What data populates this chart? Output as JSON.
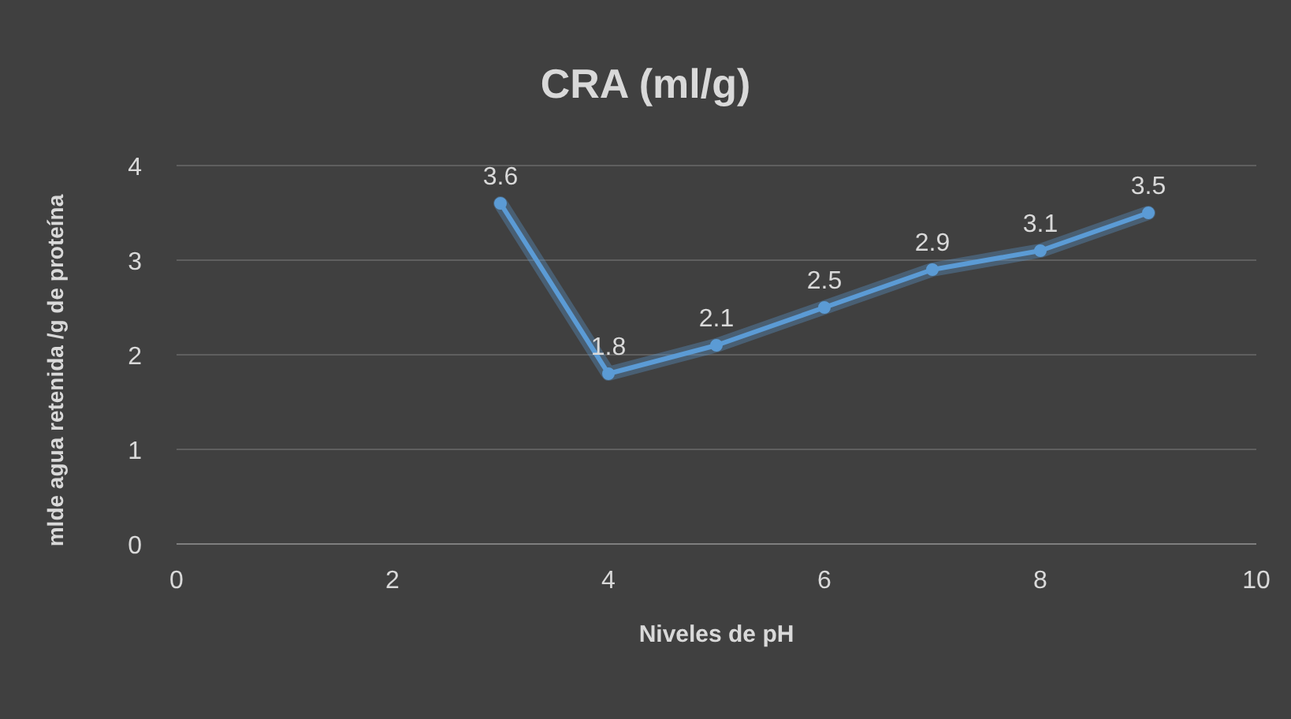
{
  "chart_data": {
    "type": "line",
    "title": "CRA (ml/g)",
    "xlabel": "Niveles de pH",
    "ylabel": "mlde agua retenida /g de proteína",
    "x": [
      3,
      4,
      5,
      6,
      7,
      8,
      9
    ],
    "series": [
      {
        "color": "#5b9bd5",
        "values": [
          3.6,
          1.8,
          2.1,
          2.5,
          2.9,
          3.1,
          3.5
        ]
      }
    ],
    "xlim": [
      0,
      10
    ],
    "xticks": [
      0,
      2,
      4,
      6,
      8,
      10
    ],
    "ylim": [
      0,
      4
    ],
    "yticks": [
      0,
      1,
      2,
      3,
      4
    ],
    "grid": "y",
    "marker": "circle",
    "line_style": "solid",
    "data_labels": true
  }
}
